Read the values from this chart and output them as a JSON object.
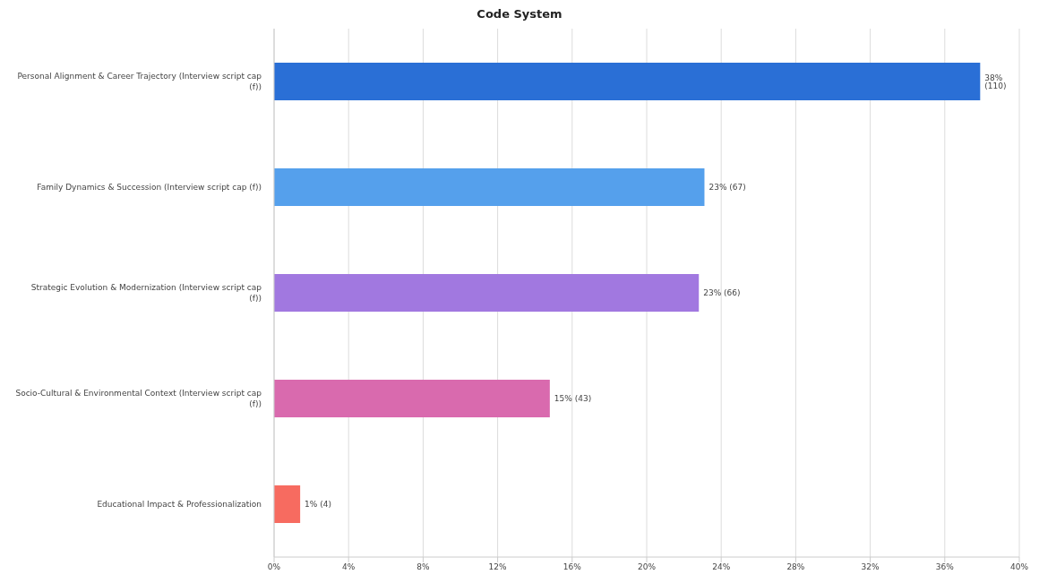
{
  "chart_data": {
    "type": "bar",
    "orientation": "horizontal",
    "title": "Code System",
    "categories": [
      "Personal Alignment & Career Trajectory (Interview script  cap (f))",
      "Family Dynamics & Succession (Interview script  cap (f))",
      "Strategic Evolution & Modernization (Interview script  cap (f))",
      "Socio-Cultural & Environmental Context (Interview script  cap (f))",
      "Educational Impact & Professionalization"
    ],
    "values": [
      37.9,
      23.1,
      22.8,
      14.8,
      1.4
    ],
    "colors": [
      "#2a6fd6",
      "#55a0ec",
      "#a178e0",
      "#d96aae",
      "#f76b60"
    ],
    "value_labels": [
      "38% (110)",
      "23% (67)",
      "23% (66)",
      "15% (43)",
      "1% (4)"
    ],
    "xlim": [
      0,
      40
    ],
    "xticks": [
      {
        "value": 0,
        "label": "0%"
      },
      {
        "value": 4,
        "label": "4%"
      },
      {
        "value": 8,
        "label": "8%"
      },
      {
        "value": 12,
        "label": "12%"
      },
      {
        "value": 16,
        "label": "16%"
      },
      {
        "value": 20,
        "label": "20%"
      },
      {
        "value": 24,
        "label": "24%"
      },
      {
        "value": 28,
        "label": "28%"
      },
      {
        "value": 32,
        "label": "32%"
      },
      {
        "value": 36,
        "label": "36%"
      },
      {
        "value": 40,
        "label": "40%"
      }
    ],
    "grid": "x"
  }
}
